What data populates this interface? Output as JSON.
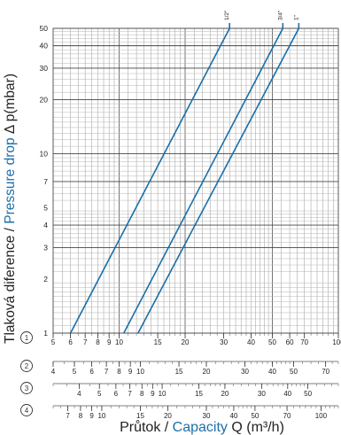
{
  "chart_data": {
    "type": "line",
    "ylabel_cz": "Tlaková diference / ",
    "ylabel_en": "Pressure drop",
    "ylabel_sym": " Δ p(mbar)",
    "xlabel_cz": "Průtok / ",
    "xlabel_en": "Capacity",
    "xlabel_sym": " Q (m³/h)",
    "x_scale": "log",
    "y_scale": "log",
    "xlim": [
      5,
      100
    ],
    "ylim": [
      1,
      50
    ],
    "grid": true,
    "accent_color": "#1a6fa8",
    "line_color": "#1a6fa8",
    "y_ticks": [
      "1",
      "2",
      "3",
      "4",
      "5",
      "7",
      "10",
      "20",
      "30",
      "40",
      "50"
    ],
    "series": [
      {
        "name": "1/2\"",
        "x": [
          6.0,
          31.9
        ],
        "y": [
          1,
          50
        ]
      },
      {
        "name": "3/4\"",
        "x": [
          10.5,
          55.8
        ],
        "y": [
          1,
          50
        ]
      },
      {
        "name": "1\"",
        "x": [
          12.2,
          66.0
        ],
        "y": [
          1,
          50
        ]
      }
    ],
    "scales": [
      {
        "id": "①",
        "range": [
          5,
          100
        ],
        "major": [
          5,
          6,
          7,
          8,
          9,
          10,
          15,
          20,
          30,
          40,
          50,
          60,
          70,
          100
        ],
        "labels": [
          "5",
          "6",
          "7",
          "8",
          "9",
          "10",
          "15",
          "20",
          "30",
          "40",
          "50",
          "60",
          "70",
          "100"
        ]
      },
      {
        "id": "②",
        "range": [
          4,
          80
        ],
        "major": [
          4,
          5,
          6,
          7,
          8,
          9,
          10,
          15,
          20,
          30,
          40,
          50,
          70
        ],
        "labels": [
          "4",
          "5",
          "6",
          "7",
          "8",
          "9",
          "10",
          "15",
          "20",
          "30",
          "40",
          "50",
          "70"
        ]
      },
      {
        "id": "③",
        "range": [
          3,
          70
        ],
        "major": [
          4,
          5,
          6,
          7,
          8,
          9,
          10,
          15,
          20,
          30,
          40,
          50
        ],
        "labels": [
          "4",
          "5",
          "6",
          "7",
          "8",
          "9",
          "10",
          "15",
          "20",
          "30",
          "40",
          "50"
        ]
      },
      {
        "id": "④",
        "range": [
          6,
          120
        ],
        "major": [
          7,
          8,
          9,
          10,
          15,
          20,
          30,
          40,
          50,
          70,
          100
        ],
        "labels": [
          "7",
          "8",
          "9",
          "10",
          "15",
          "20",
          "30",
          "40",
          "50",
          "70",
          "100"
        ]
      }
    ]
  }
}
